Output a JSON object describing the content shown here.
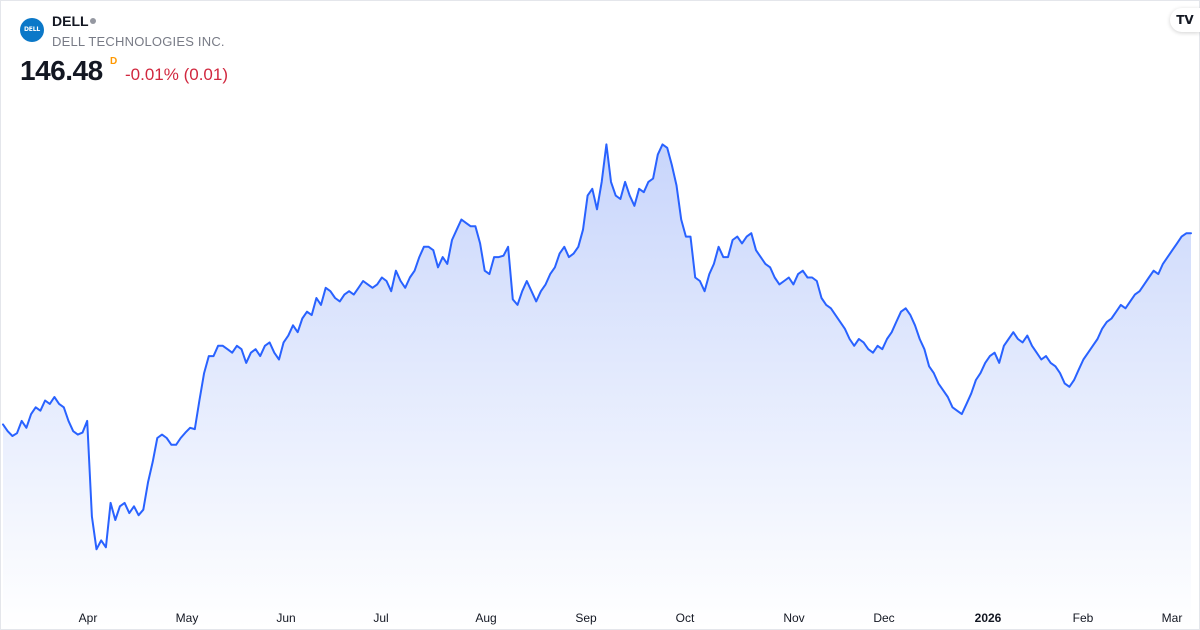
{
  "header": {
    "logo_text": "DELL",
    "ticker": "DELL",
    "company": "DELL TECHNOLOGIES INC.",
    "price": "146.48",
    "delay_badge": "D",
    "change": "-0.01% (0.01)",
    "tv_logo": "TV"
  },
  "colors": {
    "line": "#2962ff",
    "area_top": "#c5d3fb",
    "change_negative": "#d1283f",
    "delay_badge": "#ff9800"
  },
  "chart_data": {
    "type": "area",
    "series": [
      {
        "values": [
          118.5,
          117.5,
          116.8,
          117.2,
          119.0,
          118.0,
          120.0,
          121.0,
          120.5,
          122.0,
          121.5,
          122.5,
          121.5,
          121.0,
          119.0,
          117.5,
          117.0,
          117.3,
          119.0,
          105.0,
          100.2,
          101.5,
          100.5,
          107.0,
          104.5,
          106.5,
          107.0,
          105.5,
          106.5,
          105.2,
          106.0,
          110.0,
          113.0,
          116.5,
          117.0,
          116.5,
          115.5,
          115.5,
          116.5,
          117.3,
          118.0,
          117.8,
          122.0,
          126.0,
          128.5,
          128.5,
          130.0,
          130.0,
          129.5,
          129.0,
          130.0,
          129.5,
          127.5,
          129.0,
          129.5,
          128.5,
          130.0,
          130.5,
          129.0,
          128.0,
          130.5,
          131.5,
          133.0,
          132.0,
          134.0,
          135.0,
          134.5,
          137.0,
          136.0,
          138.5,
          138.0,
          137.0,
          136.5,
          137.5,
          138.0,
          137.5,
          138.5,
          139.5,
          139.0,
          138.5,
          139.0,
          140.0,
          139.5,
          138.0,
          141.0,
          139.5,
          138.5,
          140.0,
          141.0,
          143.0,
          144.5,
          144.5,
          144.0,
          141.5,
          143.0,
          142.0,
          145.5,
          147.0,
          148.5,
          148.0,
          147.5,
          147.5,
          145.0,
          141.0,
          140.5,
          143.0,
          143.0,
          143.2,
          144.5,
          136.8,
          136.0,
          138.0,
          139.5,
          138.0,
          136.5,
          138.0,
          139.0,
          140.5,
          141.5,
          143.5,
          144.5,
          143.0,
          143.5,
          144.5,
          147.0,
          152.0,
          153.0,
          150.0,
          154.0,
          159.5,
          154.0,
          152.0,
          151.5,
          154.0,
          152.0,
          150.5,
          153.0,
          152.5,
          154.0,
          154.5,
          158.0,
          159.5,
          159.0,
          156.5,
          153.5,
          148.5,
          146.0,
          146.0,
          140.0,
          139.5,
          138.0,
          140.5,
          142.0,
          144.5,
          143.0,
          143.0,
          145.5,
          146.0,
          145.0,
          146.0,
          146.5,
          144.0,
          143.0,
          142.0,
          141.5,
          140.0,
          139.0,
          139.5,
          140.0,
          139.0,
          140.5,
          141.0,
          140.0,
          140.0,
          139.5,
          137.0,
          136.0,
          135.5,
          134.5,
          133.5,
          132.5,
          131.0,
          130.0,
          131.0,
          130.5,
          129.5,
          129.0,
          130.0,
          129.5,
          131.0,
          132.0,
          133.5,
          135.0,
          135.5,
          134.5,
          133.0,
          131.0,
          129.5,
          127.0,
          126.0,
          124.5,
          123.5,
          122.5,
          121.0,
          120.5,
          120.0,
          121.5,
          123.0,
          125.0,
          126.0,
          127.5,
          128.5,
          129.0,
          127.5,
          130.0,
          131.0,
          132.0,
          131.0,
          130.5,
          131.5,
          130.0,
          129.0,
          128.0,
          128.5,
          127.5,
          127.0,
          126.0,
          124.5,
          124.0,
          125.0,
          126.5,
          128.0,
          129.0,
          130.0,
          131.0,
          132.5,
          133.5,
          134.0,
          135.0,
          136.0,
          135.5,
          136.5,
          137.5,
          138.0,
          139.0,
          140.0,
          141.0,
          140.5,
          142.0,
          143.0,
          144.0,
          145.0,
          146.0,
          146.48,
          146.48
        ]
      }
    ],
    "x_ticks": [
      "Apr",
      "May",
      "Jun",
      "Jul",
      "Aug",
      "Sep",
      "Oct",
      "Nov",
      "Dec",
      "2026",
      "Feb",
      "Mar"
    ],
    "x_ticks_bold": [
      "2026"
    ],
    "ylim": [
      96,
      166
    ],
    "grid": false,
    "legend": "none"
  }
}
